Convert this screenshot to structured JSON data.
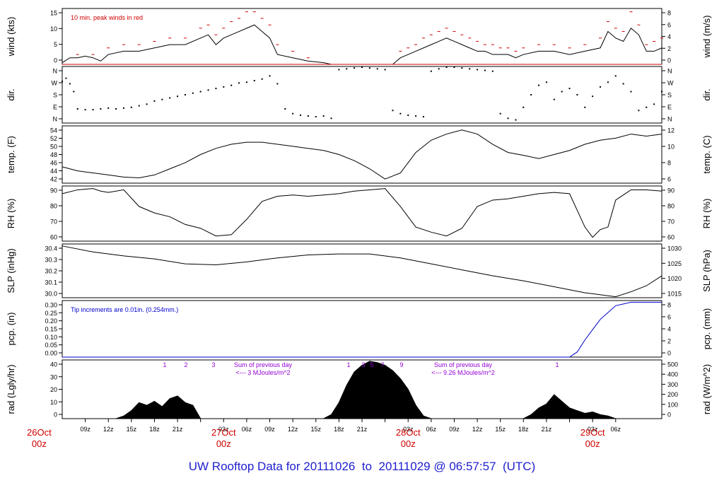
{
  "footer": {
    "title_prefix": "UW Rooftop Data for",
    "start": "20111026",
    "to_word": "to",
    "end": "20111029",
    "at_word": "@",
    "time": "06:57:57",
    "tz": "(UTC)"
  },
  "colors": {
    "axis": "#000000",
    "peak": "#d00000",
    "precip": "#0000cc",
    "note": "#9400d3",
    "day_label": "#d00000",
    "footer": "#2020d0"
  },
  "chart_data": [
    {
      "type": "line",
      "id": "wind",
      "ylabel_left": "wind (kts)",
      "ylabel_right": "wind (m/s)",
      "left_ticks": [
        "0",
        "5",
        "10",
        "15"
      ],
      "right_ticks": [
        "0",
        "2",
        "4",
        "6",
        "8"
      ],
      "ylim": [
        0,
        17
      ],
      "annotation": "10 min. peak winds in red",
      "series": [
        {
          "role": "mean",
          "x": [
            0,
            1,
            2,
            3,
            4,
            5,
            6,
            8,
            10,
            12,
            14,
            16,
            18,
            19,
            20,
            21,
            22,
            23,
            24,
            25,
            26,
            27,
            28,
            30,
            32,
            34,
            35,
            36,
            37,
            38,
            39,
            40,
            41,
            42,
            43,
            44,
            45,
            46,
            47,
            48,
            49,
            50,
            51,
            52,
            53,
            54,
            55,
            56,
            57,
            58,
            59,
            60,
            62,
            64,
            66,
            68,
            70,
            71,
            72,
            73,
            74,
            75,
            76,
            77,
            78
          ],
          "y": [
            0.5,
            2,
            2,
            2.5,
            2,
            1,
            3,
            4,
            4,
            5,
            6,
            6,
            8,
            9,
            6,
            8,
            9,
            10,
            11,
            12,
            10,
            8,
            3,
            2,
            1,
            0.5,
            0,
            0,
            0,
            0,
            0,
            0,
            0,
            0,
            0,
            2,
            3,
            4,
            5,
            6,
            7,
            8,
            7,
            6,
            5,
            4,
            4,
            3,
            3,
            3,
            2,
            3,
            4,
            4,
            3,
            4,
            5,
            10,
            8,
            7,
            11,
            9,
            4,
            4,
            5
          ]
        },
        {
          "role": "peak10min",
          "x": [
            2,
            4,
            6,
            8,
            10,
            12,
            14,
            16,
            18,
            19,
            20,
            21,
            22,
            23,
            24,
            25,
            26,
            27,
            28,
            30,
            32,
            44,
            45,
            46,
            47,
            48,
            49,
            50,
            51,
            52,
            53,
            54,
            55,
            56,
            57,
            58,
            59,
            60,
            62,
            64,
            66,
            68,
            70,
            71,
            72,
            73,
            74,
            75,
            76,
            77,
            78
          ],
          "y": [
            3,
            3,
            5,
            6,
            6,
            7,
            8,
            8,
            11,
            12,
            9,
            11,
            13,
            14,
            16,
            16,
            14,
            12,
            6,
            4,
            2,
            4,
            5,
            6,
            8,
            9,
            10,
            11,
            10,
            9,
            8,
            7,
            6,
            6,
            5,
            5,
            4,
            5,
            6,
            6,
            5,
            6,
            8,
            13,
            11,
            10,
            16,
            12,
            6,
            7,
            8
          ]
        }
      ]
    },
    {
      "type": "scatter",
      "id": "dir",
      "ylabel_left": "dir.",
      "ylabel_right": "dir.",
      "left_ticks": [
        "N",
        "E",
        "S",
        "W",
        "N"
      ],
      "right_ticks": [
        "N",
        "E",
        "S",
        "W",
        "N"
      ],
      "ylim": [
        0,
        360
      ],
      "x": [
        0,
        0.5,
        1,
        1.5,
        2,
        3,
        4,
        5,
        6,
        7,
        8,
        9,
        10,
        11,
        12,
        13,
        14,
        15,
        16,
        17,
        18,
        19,
        20,
        21,
        22,
        23,
        24,
        25,
        26,
        27,
        28,
        29,
        30,
        31,
        32,
        33,
        34,
        35,
        36,
        37,
        38,
        39,
        40,
        41,
        42,
        43,
        44,
        45,
        46,
        47,
        48,
        49,
        50,
        51,
        52,
        53,
        54,
        55,
        56,
        57,
        58,
        59,
        60,
        61,
        62,
        63,
        64,
        65,
        66,
        67,
        68,
        69,
        70,
        71,
        72,
        73,
        74,
        75,
        76,
        77,
        78
      ],
      "y": [
        265,
        285,
        250,
        200,
        90,
        85,
        85,
        90,
        95,
        90,
        95,
        100,
        110,
        120,
        140,
        150,
        160,
        170,
        180,
        190,
        200,
        210,
        220,
        230,
        240,
        255,
        260,
        270,
        280,
        300,
        250,
        90,
        60,
        50,
        45,
        40,
        45,
        30,
        340,
        345,
        350,
        355,
        350,
        345,
        340,
        80,
        60,
        50,
        45,
        40,
        330,
        345,
        355,
        355,
        350,
        345,
        340,
        335,
        330,
        60,
        30,
        20,
        100,
        180,
        240,
        260,
        150,
        200,
        220,
        180,
        100,
        170,
        230,
        260,
        300,
        250,
        200,
        80,
        100,
        120,
        200
      ]
    },
    {
      "type": "line",
      "id": "temp",
      "ylabel_left": "temp. (F)",
      "ylabel_right": "temp. (C)",
      "left_ticks": [
        "42",
        "44",
        "46",
        "48",
        "50",
        "52",
        "54"
      ],
      "right_ticks": [
        "6",
        "8",
        "10",
        "12"
      ],
      "ylim": [
        41.5,
        55.5
      ],
      "x": [
        0,
        2,
        4,
        6,
        8,
        10,
        12,
        14,
        16,
        18,
        20,
        22,
        24,
        26,
        28,
        30,
        32,
        34,
        36,
        38,
        40,
        42,
        44,
        46,
        48,
        50,
        52,
        54,
        56,
        58,
        60,
        62,
        64,
        66,
        68,
        70,
        72,
        74,
        76,
        78
      ],
      "y": [
        45.5,
        44.5,
        44,
        43.5,
        43,
        42.8,
        43.5,
        45,
        46.5,
        48.5,
        50,
        51,
        51.5,
        51.5,
        51,
        50.5,
        50,
        49.5,
        48.5,
        47,
        45,
        42.5,
        44,
        49,
        52,
        53.5,
        54.5,
        53.5,
        51,
        49,
        48.3,
        47.5,
        48.5,
        49.5,
        51,
        52,
        52.5,
        53.5,
        53,
        53.5
      ]
    },
    {
      "type": "line",
      "id": "rh",
      "ylabel_left": "RH (%)",
      "ylabel_right": "RH (%)",
      "left_ticks": [
        "60",
        "70",
        "80",
        "90"
      ],
      "right_ticks": [
        "60",
        "70",
        "80",
        "90"
      ],
      "ylim": [
        53,
        96
      ],
      "x": [
        0,
        2,
        4,
        5,
        6,
        8,
        10,
        12,
        14,
        16,
        18,
        20,
        22,
        24,
        26,
        28,
        30,
        32,
        34,
        36,
        38,
        40,
        42,
        44,
        46,
        48,
        50,
        52,
        54,
        56,
        58,
        60,
        62,
        64,
        66,
        68,
        69,
        70,
        71,
        72,
        74,
        76,
        78
      ],
      "y": [
        90,
        93,
        94,
        92,
        91,
        93,
        80,
        75,
        72,
        66,
        63,
        57,
        58,
        70,
        84,
        88,
        89,
        88,
        89,
        90,
        92,
        93,
        94,
        80,
        64,
        60,
        57,
        63,
        80,
        85,
        86,
        88,
        90,
        91,
        90,
        64,
        56,
        62,
        64,
        85,
        93,
        93,
        92
      ]
    },
    {
      "type": "line",
      "id": "slp",
      "ylabel_left": "SLP (inHg)",
      "ylabel_right": "SLP (hPa)",
      "left_ticks": [
        "30.0",
        "30.1",
        "30.2",
        "30.3",
        "30.4"
      ],
      "right_ticks": [
        "1015",
        "1020",
        "1025",
        "1030"
      ],
      "ylim": [
        29.94,
        30.48
      ],
      "x": [
        0,
        4,
        8,
        12,
        16,
        20,
        24,
        28,
        32,
        36,
        40,
        44,
        48,
        52,
        56,
        60,
        64,
        68,
        72,
        74,
        76,
        78
      ],
      "y": [
        30.46,
        30.4,
        30.36,
        30.33,
        30.28,
        30.27,
        30.3,
        30.34,
        30.37,
        30.38,
        30.38,
        30.34,
        30.28,
        30.22,
        30.16,
        30.11,
        30.05,
        29.99,
        29.95,
        30.0,
        30.06,
        30.16
      ]
    },
    {
      "type": "line",
      "id": "pcp",
      "ylabel_left": "pcp. (in)",
      "ylabel_right": "pcp. (mm)",
      "left_ticks": [
        "0.00",
        "0.05",
        "0.10",
        "0.15",
        "0.20",
        "0.25",
        "0.30"
      ],
      "right_ticks": [
        "0",
        "2",
        "4",
        "6",
        "8"
      ],
      "ylim": [
        0,
        0.33
      ],
      "annotation": "Tip increments are 0.01in. (0.254mm.)",
      "x": [
        0,
        66,
        67,
        68,
        69,
        70,
        71,
        72,
        73,
        74,
        78
      ],
      "y": [
        0,
        0,
        0.03,
        0.1,
        0.16,
        0.22,
        0.26,
        0.3,
        0.31,
        0.32,
        0.32
      ]
    },
    {
      "type": "area",
      "id": "rad",
      "ylabel_left": "rad (Lgly/hr)",
      "ylabel_right": "rad (W/m^2)",
      "left_ticks": [
        "0",
        "10",
        "20",
        "30",
        "40"
      ],
      "right_ticks": [
        "0",
        "100",
        "200",
        "300",
        "400",
        "500"
      ],
      "ylim": [
        0,
        44
      ],
      "x": [
        0,
        7,
        8,
        9,
        10,
        11,
        12,
        13,
        14,
        15,
        16,
        17,
        18,
        19,
        34,
        35,
        36,
        37,
        38,
        39,
        40,
        41,
        42,
        43,
        44,
        45,
        46,
        47,
        48,
        60,
        61,
        62,
        63,
        64,
        65,
        66,
        67,
        68,
        69,
        70,
        71,
        72,
        73,
        78
      ],
      "y": [
        0,
        0,
        2,
        6,
        12,
        10,
        13,
        9,
        15,
        17,
        12,
        10,
        0,
        0,
        0,
        3,
        12,
        25,
        35,
        40,
        43,
        42,
        40,
        36,
        30,
        22,
        10,
        2,
        0,
        0,
        3,
        8,
        11,
        18,
        13,
        8,
        6,
        4,
        5,
        3,
        2,
        0,
        0,
        0
      ],
      "markers": [
        "1",
        "2",
        "3",
        "1",
        "3",
        "5",
        "7",
        "9",
        "1"
      ],
      "notes": [
        {
          "line1": "Sum of previous day",
          "line2": "<--- 3 MJoules/m^2"
        },
        {
          "line1": "Sum of previous day",
          "line2": "<--- 9.26 MJoules/m^2"
        }
      ]
    }
  ],
  "x_axis": {
    "ticks": [
      "09z",
      "12z",
      "15z",
      "18z",
      "21z",
      "00z",
      "03z",
      "06z",
      "09z",
      "12z",
      "15z",
      "18z",
      "21z",
      "00z",
      "03z",
      "06z",
      "09z",
      "12z",
      "15z",
      "18z",
      "21z",
      "00z",
      "03z",
      "06z"
    ],
    "day_labels": [
      {
        "date": "26Oct",
        "hour": "00z"
      },
      {
        "date": "27Oct",
        "hour": "00z"
      },
      {
        "date": "28Oct",
        "hour": "00z"
      },
      {
        "date": "29Oct",
        "hour": "00z"
      }
    ]
  }
}
